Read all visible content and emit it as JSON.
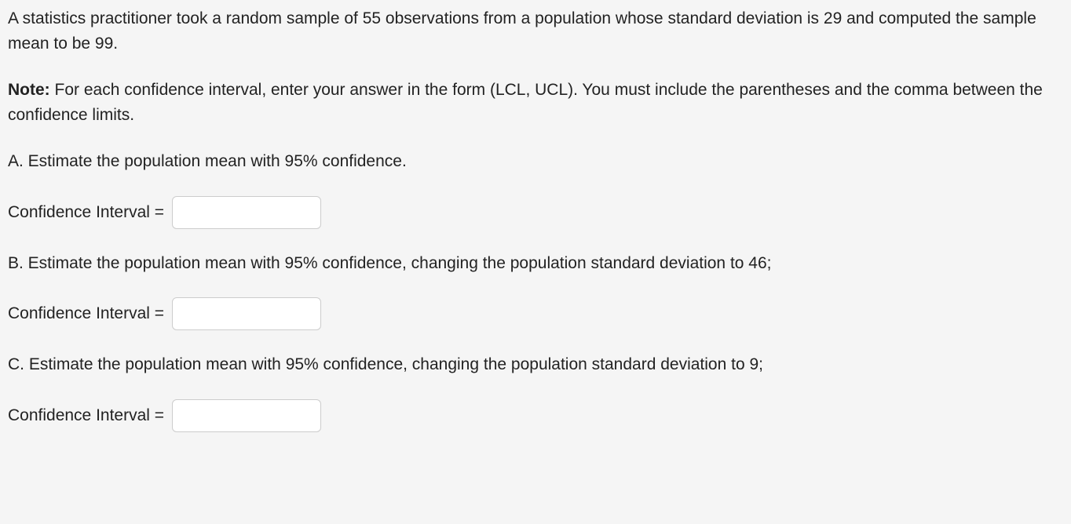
{
  "intro_text": "A statistics practitioner took a random sample of 55 observations from a population whose standard deviation is 29 and computed the sample mean to be 99.",
  "note_label": "Note:",
  "note_text": " For each confidence interval, enter your answer in the form (LCL, UCL). You must include the parentheses and the comma between the confidence limits.",
  "part_a": {
    "prompt": "A. Estimate the population mean with 95% confidence.",
    "label": "Confidence Interval = ",
    "value": ""
  },
  "part_b": {
    "prompt": "B. Estimate the population mean with 95% confidence, changing the population standard deviation to 46;",
    "label": "Confidence Interval = ",
    "value": ""
  },
  "part_c": {
    "prompt": "C. Estimate the population mean with 95% confidence, changing the population standard deviation to 9;",
    "label": "Confidence Interval = ",
    "value": ""
  }
}
